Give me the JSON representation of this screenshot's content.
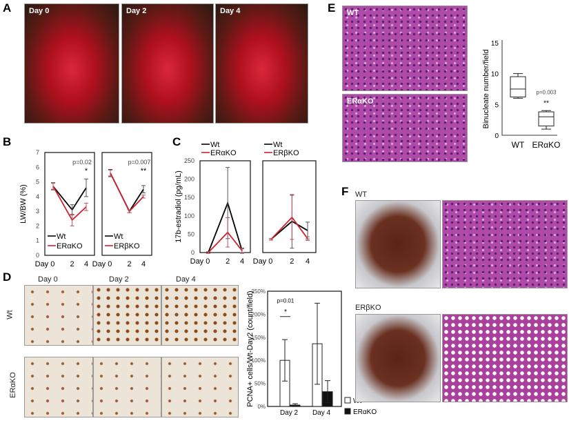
{
  "panels": {
    "A": "A",
    "B": "B",
    "C": "C",
    "D": "D",
    "E": "E",
    "F": "F"
  },
  "A": {
    "photos": [
      "Day 0",
      "Day 2",
      "Day 4"
    ]
  },
  "D": {
    "cols": [
      "Day 0",
      "Day 2",
      "Day 4"
    ],
    "rows": [
      "Wt",
      "ERαKO"
    ]
  },
  "E": {
    "images": [
      "WT",
      "ERαKO"
    ]
  },
  "F": {
    "rows": [
      "WT",
      "ERβKO"
    ]
  },
  "colors": {
    "wt": "#000000",
    "ko": "#d0202c",
    "surgery": "#b0101e",
    "he_stain": "#b04aa8",
    "pcna": "#8a4a1e"
  },
  "chart_data": [
    {
      "id": "B1",
      "type": "line",
      "ylabel": "LW/BW (%)",
      "categories": [
        "Day 0",
        "2",
        "4"
      ],
      "ylim": [
        0,
        7
      ],
      "yticks": [
        0,
        1,
        2,
        3,
        4,
        5,
        6,
        7
      ],
      "series": [
        {
          "name": "Wt",
          "values": [
            4.7,
            3.1,
            4.6
          ],
          "err": [
            0.25,
            0.35,
            0.6
          ]
        },
        {
          "name": "ERαKO",
          "values": [
            4.7,
            2.4,
            3.3
          ],
          "err": [
            0.2,
            0.4,
            0.25
          ]
        }
      ],
      "annotation": {
        "text": "p=0.02",
        "stars": "*"
      },
      "legend": "bottom-left"
    },
    {
      "id": "B2",
      "type": "line",
      "categories": [
        "Day 0",
        "2",
        "4"
      ],
      "ylim": [
        0,
        7
      ],
      "series": [
        {
          "name": "Wt",
          "values": [
            5.6,
            3.0,
            4.5
          ],
          "err": [
            0.25,
            0.1,
            0.25
          ]
        },
        {
          "name": "ERβKO",
          "values": [
            5.6,
            3.0,
            4.0
          ],
          "err": [
            0.2,
            0.1,
            0.1
          ]
        }
      ],
      "annotation": {
        "text": "p=0.007",
        "stars": "**"
      },
      "legend": "bottom-left"
    },
    {
      "id": "C1",
      "type": "line",
      "ylabel": "17b-estradiol (pg/mL)",
      "categories": [
        "Day 0",
        "2",
        "4"
      ],
      "ylim": [
        0,
        250
      ],
      "yticks": [
        0,
        50,
        100,
        150,
        200,
        250
      ],
      "series": [
        {
          "name": "Wt",
          "values": [
            0,
            135,
            5
          ],
          "err": [
            2,
            97,
            7
          ]
        },
        {
          "name": "ERαKO",
          "values": [
            0,
            55,
            5
          ],
          "err": [
            2,
            40,
            5
          ]
        }
      ],
      "legend": "top"
    },
    {
      "id": "C2",
      "type": "line",
      "categories": [
        "Day 0",
        "2",
        "4"
      ],
      "ylim": [
        0,
        250
      ],
      "series": [
        {
          "name": "Wt",
          "values": [
            36,
            85,
            60
          ],
          "err": [
            2,
            73,
            23
          ]
        },
        {
          "name": "ERβKO",
          "values": [
            36,
            96,
            38
          ],
          "err": [
            2,
            60,
            5
          ]
        }
      ],
      "legend": "top"
    },
    {
      "id": "D",
      "type": "bar",
      "ylabel": "PCNA+ cells/Wt-Day2 (count/field)",
      "categories": [
        "Day 2",
        "Day 4"
      ],
      "ylim": [
        0,
        250
      ],
      "yticks": [
        "0%",
        "50%",
        "100%",
        "150%",
        "200%",
        "250%"
      ],
      "series": [
        {
          "name": "Wt",
          "values": [
            100,
            136
          ],
          "err": [
            45,
            88
          ]
        },
        {
          "name": "ERαKO",
          "values": [
            3,
            32
          ],
          "err": [
            3,
            24
          ]
        }
      ],
      "annotation": {
        "text": "p=0.01",
        "stars": "*"
      },
      "legend": "bottom-right"
    },
    {
      "id": "E",
      "type": "box",
      "ylabel": "Binucleate number/field",
      "categories": [
        "WT",
        "ERαKO"
      ],
      "ylim": [
        0,
        15
      ],
      "yticks": [
        0,
        5,
        10,
        15
      ],
      "boxes": [
        {
          "min": 6,
          "q1": 6.2,
          "median": 7.5,
          "q3": 9.5,
          "max": 10
        },
        {
          "min": 1,
          "q1": 1.5,
          "median": 3,
          "q3": 3.8,
          "max": 4
        }
      ],
      "annotation": {
        "text": "p=0.003",
        "stars": "**"
      }
    }
  ]
}
